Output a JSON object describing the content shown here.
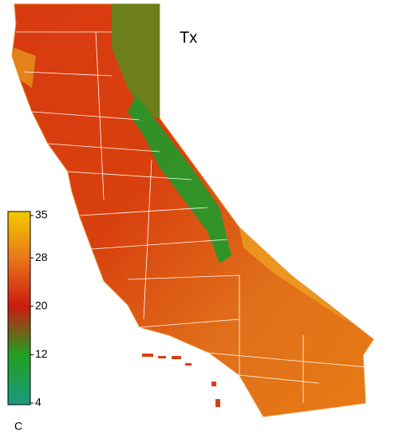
{
  "map": {
    "title": "Tx"
  },
  "colorbar": {
    "lim": [
      4,
      35
    ],
    "ticks": [
      35,
      28,
      20,
      12,
      4
    ],
    "unit": "C",
    "colors": [
      "#f2c400",
      "#e8781a",
      "#cc1a10",
      "#22a022",
      "#1a9a7a"
    ]
  }
}
